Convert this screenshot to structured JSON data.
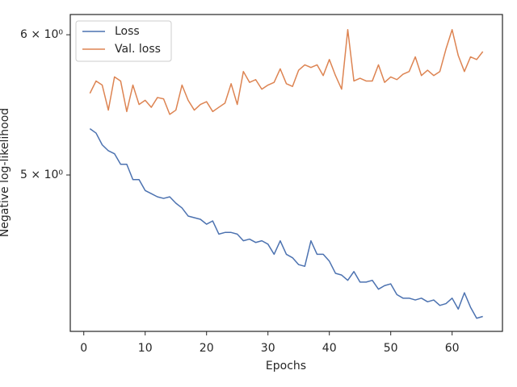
{
  "chart_data": {
    "type": "line",
    "xlabel": "Epochs",
    "ylabel": "Negative log-likelihood",
    "x": [
      1,
      2,
      3,
      4,
      5,
      6,
      7,
      8,
      9,
      10,
      11,
      12,
      13,
      14,
      15,
      16,
      17,
      18,
      19,
      20,
      21,
      22,
      23,
      24,
      25,
      26,
      27,
      28,
      29,
      30,
      31,
      32,
      33,
      34,
      35,
      36,
      37,
      38,
      39,
      40,
      41,
      42,
      43,
      44,
      45,
      46,
      47,
      48,
      49,
      50,
      51,
      52,
      53,
      54,
      55,
      56,
      57,
      58,
      59,
      60,
      61,
      62,
      63,
      64,
      65
    ],
    "series": [
      {
        "name": "Loss",
        "color": "#4c72b0",
        "values": [
          5.31,
          5.28,
          5.2,
          5.16,
          5.14,
          5.07,
          5.07,
          4.97,
          4.97,
          4.9,
          4.88,
          4.86,
          4.85,
          4.86,
          4.82,
          4.79,
          4.74,
          4.73,
          4.72,
          4.69,
          4.71,
          4.63,
          4.64,
          4.64,
          4.63,
          4.59,
          4.6,
          4.58,
          4.59,
          4.57,
          4.51,
          4.59,
          4.51,
          4.49,
          4.45,
          4.44,
          4.59,
          4.51,
          4.51,
          4.47,
          4.4,
          4.39,
          4.36,
          4.41,
          4.35,
          4.35,
          4.36,
          4.31,
          4.33,
          4.34,
          4.28,
          4.26,
          4.26,
          4.25,
          4.26,
          4.24,
          4.25,
          4.22,
          4.23,
          4.26,
          4.2,
          4.29,
          4.21,
          4.15,
          4.16
        ]
      },
      {
        "name": "Val. loss",
        "color": "#dd8452",
        "values": [
          5.56,
          5.65,
          5.62,
          5.44,
          5.68,
          5.65,
          5.43,
          5.62,
          5.48,
          5.51,
          5.46,
          5.53,
          5.52,
          5.41,
          5.44,
          5.62,
          5.51,
          5.44,
          5.48,
          5.5,
          5.43,
          5.46,
          5.49,
          5.63,
          5.48,
          5.72,
          5.64,
          5.66,
          5.59,
          5.62,
          5.64,
          5.74,
          5.63,
          5.61,
          5.73,
          5.77,
          5.75,
          5.77,
          5.69,
          5.81,
          5.69,
          5.59,
          6.04,
          5.65,
          5.67,
          5.65,
          5.65,
          5.77,
          5.64,
          5.68,
          5.66,
          5.7,
          5.72,
          5.83,
          5.69,
          5.73,
          5.69,
          5.72,
          5.89,
          6.04,
          5.84,
          5.72,
          5.83,
          5.81,
          5.87
        ]
      }
    ],
    "xlim": [
      -2.2,
      68.2
    ],
    "xticks": [
      0,
      10,
      20,
      30,
      40,
      50,
      60
    ],
    "ylim": [
      4.08,
      6.16
    ],
    "yscale": "log",
    "yticks": [
      {
        "value": 5,
        "label": "5 × 10⁰"
      },
      {
        "value": 6,
        "label": "6 × 10⁰"
      }
    ],
    "legend": "upper left"
  }
}
